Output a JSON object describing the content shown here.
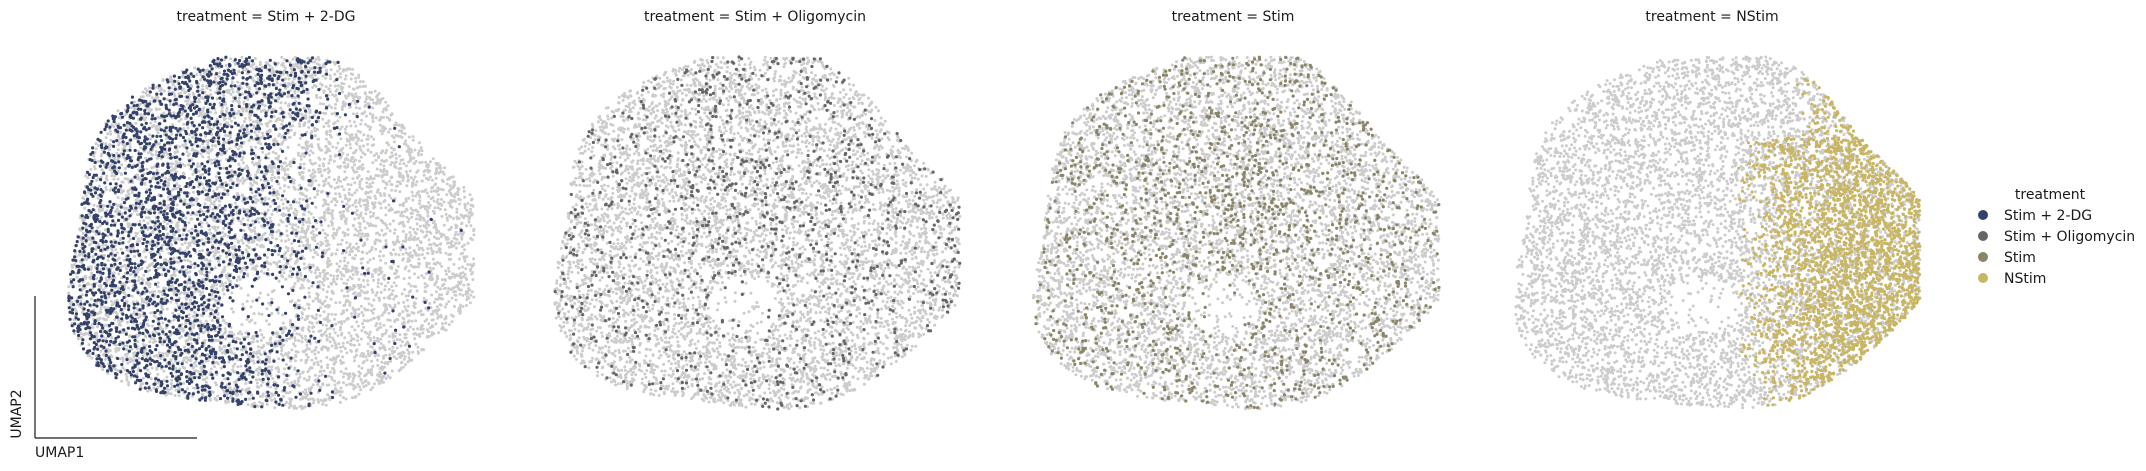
{
  "chart_data": {
    "type": "scatter",
    "description_kind": "UMAP embedding faceted by treatment",
    "xlabel": "UMAP1",
    "ylabel": "UMAP2",
    "grid": false,
    "legend": {
      "title": "treatment",
      "placement": "right",
      "entries": [
        {
          "label": "Stim + 2-DG",
          "color": "#34416a"
        },
        {
          "label": "Stim + Oligomycin",
          "color": "#666666"
        },
        {
          "label": "Stim",
          "color": "#8a8468"
        },
        {
          "label": "NStim",
          "color": "#c9b665"
        }
      ]
    },
    "background_color": "#cccccc",
    "panels": [
      {
        "title": "treatment = Stim + 2-DG",
        "highlight": "Stim + 2-DG",
        "color": "#34416a",
        "region": "left",
        "approx_points": 2600
      },
      {
        "title": "treatment = Stim + Oligomycin",
        "highlight": "Stim + Oligomycin",
        "color": "#666666",
        "region": "scattered",
        "approx_points": 1100
      },
      {
        "title": "treatment = Stim",
        "highlight": "Stim",
        "color": "#8a8468",
        "region": "scattered",
        "approx_points": 1600
      },
      {
        "title": "treatment = NStim",
        "highlight": "NStim",
        "color": "#c9b665",
        "region": "right",
        "approx_points": 2700
      }
    ],
    "background_points_per_panel": 6500
  }
}
